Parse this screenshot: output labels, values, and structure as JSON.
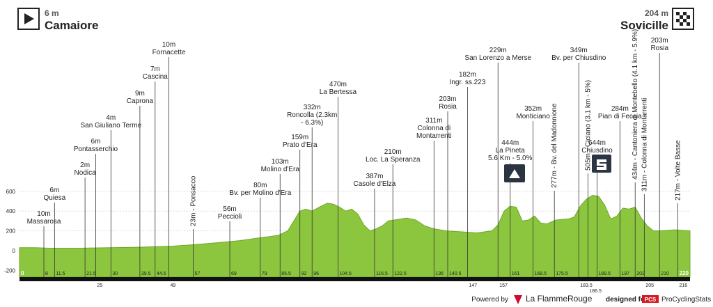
{
  "header": {
    "start": {
      "elevation": "6 m",
      "name": "Camaiore"
    },
    "finish": {
      "elevation": "204 m",
      "name": "Sovicille"
    }
  },
  "chart_data": {
    "type": "area",
    "color": "#8cc63f",
    "xlim": [
      0,
      220
    ],
    "ylim": [
      -200,
      600
    ],
    "yticks": [
      -200,
      0,
      200,
      400,
      600
    ],
    "profile": {
      "km": [
        0,
        5,
        10,
        20,
        30,
        40,
        50,
        57,
        65,
        72,
        79,
        85,
        88,
        90,
        92,
        94,
        96,
        99,
        101,
        103,
        105,
        107,
        109,
        111,
        113,
        115,
        117,
        119,
        121,
        123,
        127,
        130,
        133,
        136,
        140,
        145,
        150,
        155,
        157,
        159,
        161,
        163,
        165,
        167,
        169,
        171,
        173,
        176,
        180,
        182,
        184,
        186,
        188,
        190,
        192,
        194,
        196,
        198,
        200,
        202,
        204,
        206,
        208,
        210,
        215,
        220
      ],
      "elevation": [
        30,
        30,
        25,
        25,
        30,
        35,
        45,
        60,
        80,
        100,
        130,
        155,
        200,
        300,
        400,
        420,
        400,
        450,
        480,
        470,
        440,
        400,
        420,
        370,
        260,
        200,
        220,
        250,
        300,
        310,
        330,
        310,
        250,
        220,
        200,
        190,
        180,
        200,
        260,
        400,
        450,
        440,
        300,
        310,
        350,
        280,
        270,
        310,
        320,
        340,
        450,
        520,
        560,
        550,
        460,
        320,
        350,
        430,
        420,
        440,
        330,
        250,
        200,
        200,
        210,
        200
      ]
    },
    "waypoints": [
      {
        "km": 8,
        "lines": [
          "10m",
          "Massarosa"
        ]
      },
      {
        "km": 11.5,
        "lines": [
          "6m",
          "Quiesa"
        ]
      },
      {
        "km": 21.5,
        "lines": [
          "2m",
          "Nodica"
        ]
      },
      {
        "km": 25,
        "lines": [
          "6m",
          "Pontasserchio"
        ]
      },
      {
        "km": 30,
        "lines": [
          "4m",
          "San Giuliano Terme"
        ]
      },
      {
        "km": 39.5,
        "lines": [
          "9m",
          "Caprona"
        ]
      },
      {
        "km": 44.5,
        "lines": [
          "7m",
          "Cascina"
        ]
      },
      {
        "km": 49,
        "lines": [
          "10m",
          "Fornacette"
        ]
      },
      {
        "km": 57,
        "lines": [
          "23m - Ponsacco"
        ],
        "vertical": true
      },
      {
        "km": 69,
        "lines": [
          "56m",
          "Peccioli"
        ]
      },
      {
        "km": 79,
        "lines": [
          "80m",
          "Bv. per Molino d'Era"
        ]
      },
      {
        "km": 85.5,
        "lines": [
          "103m",
          "Molino d'Era"
        ]
      },
      {
        "km": 92,
        "lines": [
          "159m",
          "Prato d'Era"
        ]
      },
      {
        "km": 96,
        "lines": [
          "332m",
          "Roncolla (2.3km",
          "- 6.3%)"
        ]
      },
      {
        "km": 104.5,
        "lines": [
          "470m",
          "La Bertessa"
        ]
      },
      {
        "km": 116.5,
        "lines": [
          "387m",
          "Casole d'Elza"
        ]
      },
      {
        "km": 122.5,
        "lines": [
          "210m",
          "Loc. La Speranza"
        ]
      },
      {
        "km": 136,
        "lines": [
          "311m",
          "Colonna di",
          "Montarrenti"
        ]
      },
      {
        "km": 140.5,
        "lines": [
          "203m",
          "Rosia"
        ]
      },
      {
        "km": 147,
        "lines": [
          "182m",
          "Ingr. ss.223"
        ]
      },
      {
        "km": 157,
        "lines": [
          "229m",
          "San Lorenzo a Merse"
        ]
      },
      {
        "km": 161,
        "lines": [
          "444m",
          "La Pineta",
          "5.6 Km - 5.0%"
        ]
      },
      {
        "km": 168.5,
        "lines": [
          "352m",
          "Monticiano"
        ]
      },
      {
        "km": 175.5,
        "lines": [
          "277m - Bv. del Madonnione"
        ],
        "vertical": true
      },
      {
        "km": 183.5,
        "lines": [
          "349m",
          "Bv. per Chiusdino"
        ]
      },
      {
        "km": 186.5,
        "lines": [
          "505m - Ciciano (3.1 km - 5%)"
        ],
        "vertical": true
      },
      {
        "km": 189.5,
        "lines": [
          "644m",
          "Chiusdino"
        ]
      },
      {
        "km": 197,
        "lines": [
          "284m",
          "Pian di Feccia"
        ]
      },
      {
        "km": 202,
        "lines": [
          "434m - Cantoniera di Montebello (4.1 km - 5.9%)"
        ],
        "vertical": true
      },
      {
        "km": 205,
        "lines": [
          "311m - Colonna di Montarrenti"
        ],
        "vertical": true
      },
      {
        "km": 210,
        "lines": [
          "203m",
          "Rosia"
        ]
      },
      {
        "km": 216,
        "lines": [
          "217m - Volte Basse"
        ],
        "vertical": true
      }
    ]
  },
  "footer": {
    "powered": "Powered by",
    "brand": "La FlammeRouge",
    "designed": "designed for",
    "pcs": "PCS",
    "site": "ProCyclingStats"
  }
}
